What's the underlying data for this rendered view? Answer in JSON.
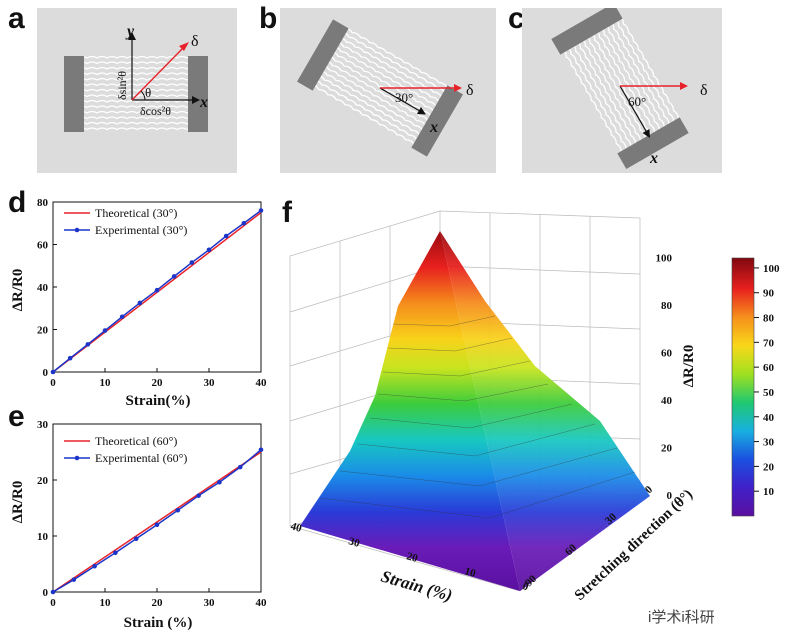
{
  "panels": [
    "a",
    "b",
    "c",
    "d",
    "e",
    "f"
  ],
  "schematic": {
    "a": {
      "y": "y",
      "x": "x",
      "delta": "δ",
      "theta": "θ",
      "sin": "δsin²θ",
      "cos": "δcos²θ"
    },
    "b": {
      "delta": "δ",
      "angle": "30°",
      "x": "x"
    },
    "c": {
      "delta": "δ",
      "angle": "60°",
      "x": "x"
    }
  },
  "colors": {
    "theoretical": "#e8222a",
    "experimental": "#1c35c8",
    "plate": "#7a7a7a",
    "panel_bg": "#dcdcdc"
  },
  "chart_data": [
    {
      "type": "line",
      "panel": "d",
      "xlabel": "Strain(%)",
      "ylabel": "ΔR/R0",
      "xlim": [
        0,
        40
      ],
      "ylim": [
        0,
        80
      ],
      "xticks": [
        0,
        10,
        20,
        30,
        40
      ],
      "yticks": [
        0,
        20,
        40,
        60,
        80
      ],
      "legend_position": "top-left",
      "series": [
        {
          "name": "Theoretical (30°)",
          "x": [
            0,
            40
          ],
          "y": [
            0,
            75
          ],
          "marker": false
        },
        {
          "name": "Experimental (30°)",
          "x": [
            0,
            3.3,
            6.7,
            10,
            13.3,
            16.7,
            20,
            23.3,
            26.7,
            30,
            33.3,
            36.7,
            40
          ],
          "y": [
            0,
            6.5,
            13,
            19.5,
            26,
            32.5,
            38.5,
            45,
            51.5,
            57.5,
            64,
            70,
            76
          ],
          "marker": true
        }
      ]
    },
    {
      "type": "line",
      "panel": "e",
      "xlabel": "Strain (%)",
      "ylabel": "ΔR/R0",
      "xlim": [
        0,
        40
      ],
      "ylim": [
        0,
        30
      ],
      "xticks": [
        0,
        10,
        20,
        30,
        40
      ],
      "yticks": [
        0,
        10,
        20,
        30
      ],
      "legend_position": "top-left",
      "series": [
        {
          "name": "Theoretical (60°)",
          "x": [
            0,
            40
          ],
          "y": [
            0,
            25
          ],
          "marker": false
        },
        {
          "name": "Experimental (60°)",
          "x": [
            0,
            4,
            8,
            12,
            16,
            20,
            24,
            28,
            32,
            36,
            40
          ],
          "y": [
            0,
            2.2,
            4.6,
            7.0,
            9.5,
            12,
            14.6,
            17.2,
            19.6,
            22.3,
            25.4
          ],
          "marker": true
        }
      ]
    },
    {
      "type": "surface",
      "panel": "f",
      "xlabel": "Strain (%)",
      "ylabel": "Stretching direction (θ°)",
      "zlabel": "ΔR/R0",
      "x_ticks": [
        40,
        30,
        20,
        10,
        0
      ],
      "y_ticks": [
        0,
        30,
        60,
        90
      ],
      "z_ticks": [
        0,
        20,
        40,
        60,
        80,
        100
      ],
      "colorbar_ticks": [
        10,
        20,
        30,
        40,
        50,
        60,
        70,
        80,
        90,
        100
      ],
      "peak": {
        "strain": 40,
        "theta": 0,
        "value": 100
      }
    }
  ],
  "watermark": "i学术i科研"
}
